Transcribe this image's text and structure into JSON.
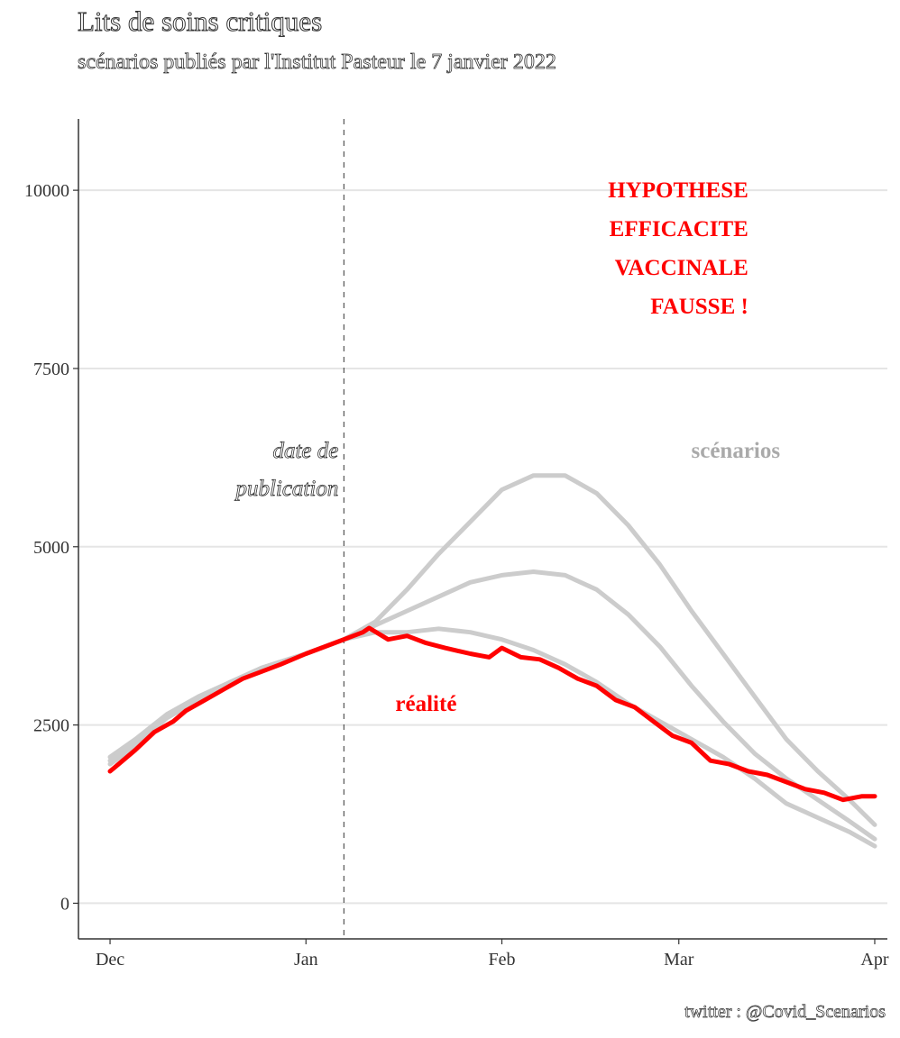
{
  "title": "Lits de soins critiques",
  "subtitle": "scénarios publiés par l'Institut Pasteur le 7 janvier 2022",
  "caption": "twitter : @Covid_Scenarios",
  "colors": {
    "reality": "#ff0000",
    "scenarios": "#cccccc",
    "grid": "#e5e5e5",
    "axis": "#333333",
    "annotation_red": "#ff0000",
    "annotation_grey": "#aaaaaa"
  },
  "chart_data": {
    "type": "line",
    "title": "Lits de soins critiques",
    "subtitle": "scénarios publiés par l'Institut Pasteur le 7 janvier 2022",
    "xlabel": "",
    "ylabel": "",
    "x_axis": {
      "type": "date",
      "range": [
        "2021-11-26",
        "2022-04-03"
      ],
      "ticks": [
        {
          "date": "2021-12-01",
          "label": "Dec"
        },
        {
          "date": "2022-01-01",
          "label": "Jan"
        },
        {
          "date": "2022-02-01",
          "label": "Feb"
        },
        {
          "date": "2022-03-01",
          "label": "Mar"
        },
        {
          "date": "2022-04-01",
          "label": "Apr"
        }
      ]
    },
    "y_axis": {
      "range": [
        -500,
        11000
      ],
      "ticks": [
        0,
        2500,
        5000,
        7500,
        10000
      ]
    },
    "grid": "horizontal",
    "publication_date": "2022-01-07",
    "annotations": {
      "publication": [
        "date de",
        "publication"
      ],
      "warning": [
        "HYPOTHESE",
        "EFFICACITE",
        "VACCINALE",
        "FAUSSE !"
      ],
      "scenarios_label": "scénarios",
      "reality_label": "réalité"
    },
    "series": [
      {
        "role": "scenario",
        "x": [
          "2021-12-01",
          "2021-12-05",
          "2021-12-10",
          "2021-12-15",
          "2021-12-20",
          "2021-12-25",
          "2022-01-01",
          "2022-01-07",
          "2022-01-12",
          "2022-01-17",
          "2022-01-22",
          "2022-01-27",
          "2022-02-01",
          "2022-02-06",
          "2022-02-11",
          "2022-02-16",
          "2022-02-21",
          "2022-02-26",
          "2022-03-03",
          "2022-03-08",
          "2022-03-13",
          "2022-03-18",
          "2022-03-23",
          "2022-03-28",
          "2022-04-01"
        ],
        "values": [
          2050,
          2300,
          2650,
          2900,
          3100,
          3300,
          3500,
          3700,
          3800,
          3800,
          3850,
          3800,
          3700,
          3550,
          3350,
          3100,
          2800,
          2550,
          2300,
          2050,
          1750,
          1400,
          1200,
          1000,
          800
        ]
      },
      {
        "role": "scenario",
        "x": [
          "2021-12-01",
          "2021-12-05",
          "2021-12-10",
          "2021-12-15",
          "2021-12-20",
          "2021-12-25",
          "2022-01-01",
          "2022-01-07",
          "2022-01-12",
          "2022-01-17",
          "2022-01-22",
          "2022-01-27",
          "2022-02-01",
          "2022-02-06",
          "2022-02-11",
          "2022-02-16",
          "2022-02-21",
          "2022-02-26",
          "2022-03-03",
          "2022-03-08",
          "2022-03-13",
          "2022-03-18",
          "2022-03-23",
          "2022-03-28",
          "2022-04-01"
        ],
        "values": [
          2000,
          2250,
          2600,
          2850,
          3100,
          3300,
          3500,
          3700,
          3900,
          4100,
          4300,
          4500,
          4600,
          4650,
          4600,
          4400,
          4050,
          3600,
          3050,
          2550,
          2100,
          1750,
          1450,
          1150,
          900
        ]
      },
      {
        "role": "scenario",
        "x": [
          "2021-12-01",
          "2021-12-05",
          "2021-12-10",
          "2021-12-15",
          "2021-12-20",
          "2021-12-25",
          "2022-01-01",
          "2022-01-07",
          "2022-01-12",
          "2022-01-17",
          "2022-01-22",
          "2022-01-27",
          "2022-02-01",
          "2022-02-06",
          "2022-02-11",
          "2022-02-16",
          "2022-02-21",
          "2022-02-26",
          "2022-03-03",
          "2022-03-08",
          "2022-03-13",
          "2022-03-18",
          "2022-03-23",
          "2022-03-28",
          "2022-04-01"
        ],
        "values": [
          1950,
          2200,
          2600,
          2850,
          3100,
          3300,
          3500,
          3700,
          3950,
          4400,
          4900,
          5350,
          5800,
          6000,
          6000,
          5750,
          5300,
          4750,
          4100,
          3500,
          2900,
          2300,
          1850,
          1450,
          1100
        ]
      },
      {
        "role": "reality",
        "x": [
          "2021-12-01",
          "2021-12-03",
          "2021-12-05",
          "2021-12-08",
          "2021-12-11",
          "2021-12-13",
          "2021-12-16",
          "2021-12-19",
          "2021-12-22",
          "2021-12-25",
          "2021-12-28",
          "2022-01-01",
          "2022-01-04",
          "2022-01-07",
          "2022-01-10",
          "2022-01-11",
          "2022-01-14",
          "2022-01-17",
          "2022-01-20",
          "2022-01-23",
          "2022-01-27",
          "2022-01-30",
          "2022-02-01",
          "2022-02-04",
          "2022-02-07",
          "2022-02-10",
          "2022-02-13",
          "2022-02-16",
          "2022-02-19",
          "2022-02-22",
          "2022-02-25",
          "2022-02-28",
          "2022-03-03",
          "2022-03-06",
          "2022-03-09",
          "2022-03-12",
          "2022-03-15",
          "2022-03-18",
          "2022-03-21",
          "2022-03-24",
          "2022-03-27",
          "2022-03-30",
          "2022-04-01"
        ],
        "values": [
          1850,
          2000,
          2150,
          2400,
          2550,
          2700,
          2850,
          3000,
          3150,
          3250,
          3350,
          3500,
          3600,
          3700,
          3800,
          3860,
          3700,
          3750,
          3650,
          3580,
          3500,
          3450,
          3580,
          3450,
          3420,
          3300,
          3150,
          3050,
          2850,
          2750,
          2550,
          2350,
          2250,
          2000,
          1950,
          1850,
          1800,
          1700,
          1600,
          1550,
          1450,
          1500,
          1500
        ]
      }
    ]
  }
}
